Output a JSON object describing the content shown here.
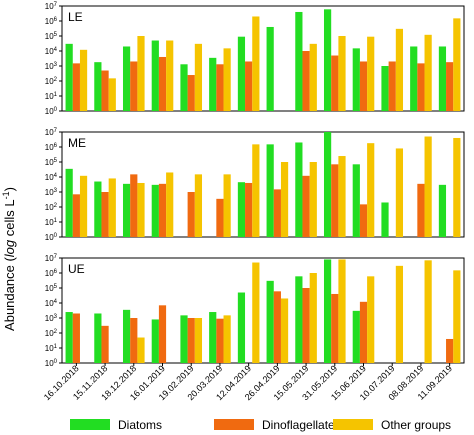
{
  "ylabel": "Abundance (log cells L⁻¹)",
  "ylabel_parts": {
    "main": "Abundance (",
    "italic": "log",
    "tail": " cells L",
    "sup": "-1",
    "close": ")"
  },
  "colors": {
    "Diatoms": "#22dd22",
    "Dinoflagellates": "#f06a10",
    "Other groups": "#f5c400"
  },
  "chart_data": {
    "type": "bar",
    "scale": "log",
    "ylim": [
      1,
      10000000
    ],
    "yticks": [
      {
        "base": "10",
        "exp": "0"
      },
      {
        "base": "10",
        "exp": "1"
      },
      {
        "base": "10",
        "exp": "2"
      },
      {
        "base": "10",
        "exp": "3"
      },
      {
        "base": "10",
        "exp": "4"
      },
      {
        "base": "10",
        "exp": "5"
      },
      {
        "base": "10",
        "exp": "6"
      },
      {
        "base": "10",
        "exp": "7"
      }
    ],
    "categories": [
      "16.10.2018",
      "15.11.2018",
      "18.12.2018",
      "16.01.2019",
      "19.02.2019",
      "20.03.2019",
      "12.04.2019",
      "26.04.2019",
      "15.05.2019",
      "31.05.2019",
      "15.06.2019",
      "10.07.2019",
      "08.08.2019",
      "11.09.2019"
    ],
    "legend": {
      "placement": "bottom",
      "entries": [
        "Diatoms",
        "Dinoflagellates",
        "Other groups"
      ]
    },
    "panels": [
      {
        "label": "LE",
        "series": [
          {
            "name": "Diatoms",
            "values": [
              30000,
              1800,
              20000,
              50000,
              1300,
              3500,
              90000,
              400000,
              4000000,
              6000000,
              15000,
              1000,
              20000,
              20000
            ]
          },
          {
            "name": "Dinoflagellates",
            "values": [
              1500,
              500,
              2000,
              4000,
              250,
              1300,
              2000,
              null,
              10000,
              5000,
              2000,
              2000,
              1500,
              1800
            ]
          },
          {
            "name": "Other groups",
            "values": [
              12000,
              150,
              100000,
              50000,
              30000,
              15000,
              2000000,
              null,
              30000,
              100000,
              90000,
              300000,
              120000,
              1500000
            ]
          }
        ]
      },
      {
        "label": "ME",
        "series": [
          {
            "name": "Diatoms",
            "values": [
              35000,
              5000,
              3500,
              3000,
              0.5,
              0.5,
              4500,
              1500000,
              2000000,
              10000000,
              70000,
              200,
              null,
              3000
            ]
          },
          {
            "name": "Dinoflagellates",
            "values": [
              700,
              1000,
              15000,
              3500,
              1000,
              350,
              4000,
              1500,
              12000,
              70000,
              150,
              null,
              3500,
              null
            ]
          },
          {
            "name": "Other groups",
            "values": [
              12000,
              8000,
              4000,
              20000,
              15000,
              15000,
              1500000,
              100000,
              100000,
              250000,
              1800000,
              800000,
              5000000,
              4000000
            ]
          }
        ]
      },
      {
        "label": "UE",
        "series": [
          {
            "name": "Diatoms",
            "values": [
              2500,
              2000,
              3500,
              800,
              1500,
              2500,
              50000,
              300000,
              600000,
              8000000,
              3000,
              null,
              null,
              null
            ]
          },
          {
            "name": "Dinoflagellates",
            "values": [
              2000,
              300,
              1000,
              7000,
              1000,
              900,
              null,
              60000,
              100000,
              40000,
              12000,
              null,
              null,
              40
            ]
          },
          {
            "name": "Other groups",
            "values": [
              null,
              null,
              50,
              null,
              1000,
              1500,
              5000000,
              20000,
              1000000,
              8000000,
              600000,
              3000000,
              7000000,
              1500000
            ]
          }
        ]
      }
    ]
  }
}
